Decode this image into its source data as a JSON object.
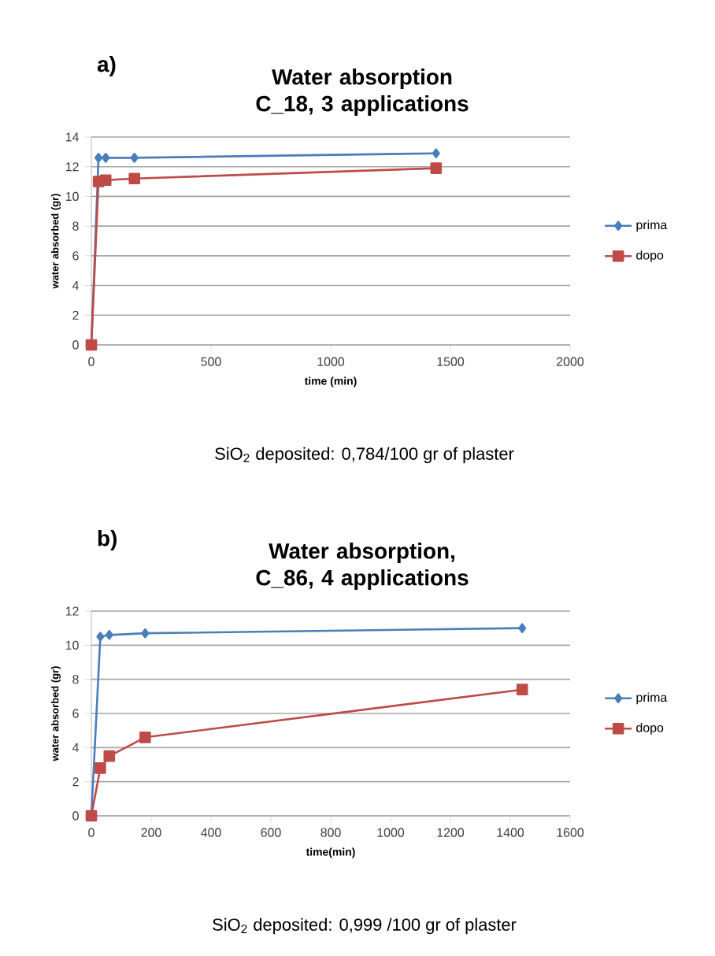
{
  "chart_data": [
    {
      "type": "line",
      "title": "Water absorption C_18, 3 applications",
      "xlabel": "time (min)",
      "ylabel": "water absorbed (gr)",
      "x": [
        0,
        30,
        60,
        180,
        1440
      ],
      "series": [
        {
          "name": "prima",
          "color": "#4a7ebb",
          "marker": "diamond",
          "values": [
            0,
            12.6,
            12.6,
            12.6,
            12.9
          ]
        },
        {
          "name": "dopo",
          "color": "#be4b48",
          "marker": "square",
          "values": [
            0,
            11.0,
            11.1,
            11.2,
            11.9
          ]
        }
      ],
      "xlim": [
        0,
        2000
      ],
      "xticks": [
        0,
        500,
        1000,
        1500,
        2000
      ],
      "ylim": [
        0,
        14
      ],
      "yticks": [
        0,
        2,
        4,
        6,
        8,
        10,
        12,
        14
      ],
      "grid": "y",
      "legend": "right",
      "annotations": [
        "a)",
        "SiO$_{2}$ deposited: 0,784/100 gr of plaster"
      ]
    },
    {
      "type": "line",
      "title": "Water absorption, C_86, 4 applications",
      "xlabel": "time(min)",
      "ylabel": "water absorbed (gr)",
      "x": [
        0,
        30,
        60,
        180,
        1440
      ],
      "series": [
        {
          "name": "prima",
          "color": "#4a7ebb",
          "marker": "diamond",
          "values": [
            0,
            10.5,
            10.6,
            10.7,
            11.0
          ]
        },
        {
          "name": "dopo",
          "color": "#be4b48",
          "marker": "square",
          "values": [
            0,
            2.8,
            3.5,
            4.6,
            7.4
          ]
        }
      ],
      "xlim": [
        0,
        1600
      ],
      "xticks": [
        0,
        200,
        400,
        600,
        800,
        1000,
        1200,
        1400,
        1600
      ],
      "ylim": [
        0,
        12
      ],
      "yticks": [
        0,
        2,
        4,
        6,
        8,
        10,
        12
      ],
      "grid": "y",
      "legend": "right",
      "annotations": [
        "b)",
        "SiO$_{2}$ deposited: 0,999 /100 gr of plaster"
      ]
    }
  ]
}
